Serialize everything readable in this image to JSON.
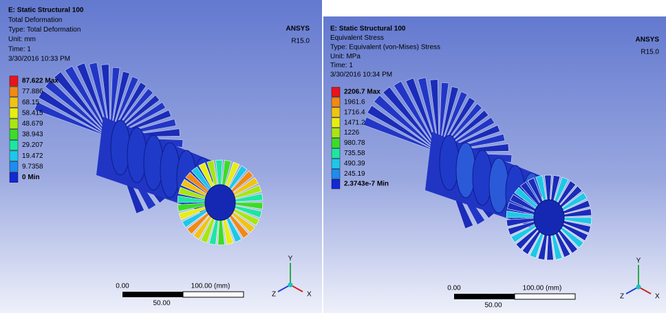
{
  "panels": [
    {
      "header": {
        "title": "E: Static Structural 100",
        "lines": [
          "Total Deformation",
          "Type: Total Deformation",
          "Unit: mm",
          "Time: 1",
          "3/30/2016 10:33 PM"
        ]
      },
      "legend": {
        "entries": [
          "87.622 Max",
          "77.886",
          "68.15",
          "58.415",
          "48.679",
          "38.943",
          "29.207",
          "19.472",
          "9.7358",
          "0 Min"
        ]
      },
      "logo": {
        "name": "ANSYS",
        "version": "R15.0"
      },
      "scale_bar": {
        "start": "0.00",
        "end": "100.00 (mm)",
        "mid": "50.00"
      },
      "triad": {
        "y": "Y",
        "x": "X",
        "z": "Z"
      }
    },
    {
      "header": {
        "title": "E: Static Structural 100",
        "lines": [
          "Equivalent Stress",
          "Type: Equivalent (von-Mises) Stress",
          "Unit: MPa",
          "Time: 1",
          "3/30/2016 10:34 PM"
        ]
      },
      "legend": {
        "entries": [
          "2206.7 Max",
          "1961.6",
          "1716.4",
          "1471.2",
          "1226",
          "980.78",
          "735.58",
          "490.39",
          "245.19",
          "2.3743e-7 Min"
        ]
      },
      "logo": {
        "name": "ANSYS",
        "version": "R15.0"
      },
      "scale_bar": {
        "start": "0.00",
        "end": "100.00 (mm)",
        "mid": "50.00"
      },
      "triad": {
        "y": "Y",
        "x": "X",
        "z": "Z"
      }
    }
  ]
}
